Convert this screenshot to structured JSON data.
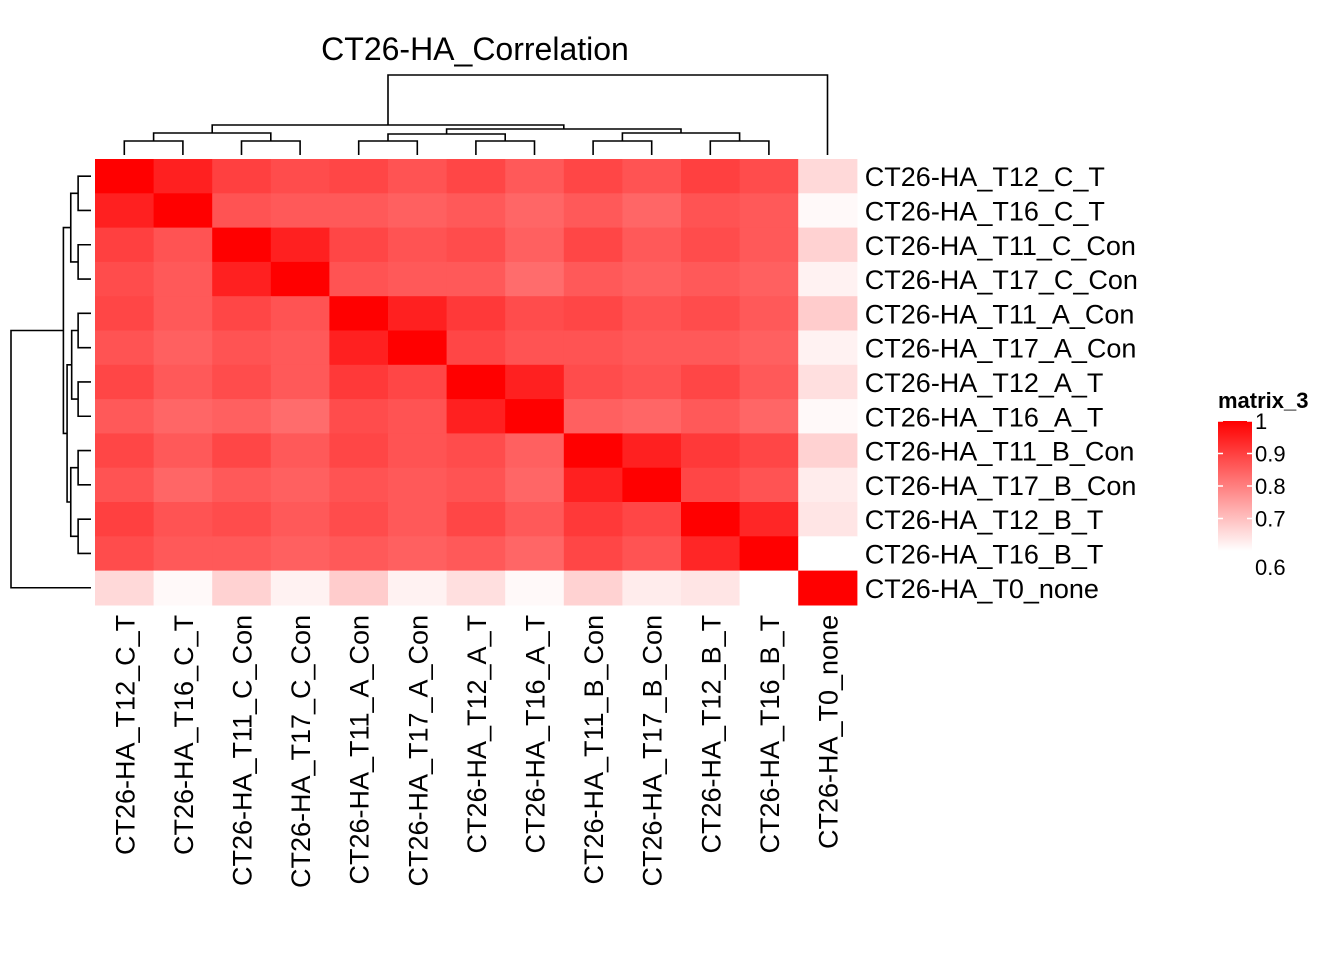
{
  "chart_data": {
    "type": "heatmap",
    "title": "CT26-HA_Correlation",
    "row_labels": [
      "CT26-HA_T12_C_T",
      "CT26-HA_T16_C_T",
      "CT26-HA_T11_C_Con",
      "CT26-HA_T17_C_Con",
      "CT26-HA_T11_A_Con",
      "CT26-HA_T17_A_Con",
      "CT26-HA_T12_A_T",
      "CT26-HA_T16_A_T",
      "CT26-HA_T11_B_Con",
      "CT26-HA_T17_B_Con",
      "CT26-HA_T12_B_T",
      "CT26-HA_T16_B_T",
      "CT26-HA_T0_none"
    ],
    "col_labels": [
      "CT26-HA_T12_C_T",
      "CT26-HA_T16_C_T",
      "CT26-HA_T11_C_Con",
      "CT26-HA_T17_C_Con",
      "CT26-HA_T11_A_Con",
      "CT26-HA_T17_A_Con",
      "CT26-HA_T12_A_T",
      "CT26-HA_T16_A_T",
      "CT26-HA_T11_B_Con",
      "CT26-HA_T17_B_Con",
      "CT26-HA_T12_B_T",
      "CT26-HA_T16_B_T",
      "CT26-HA_T0_none"
    ],
    "values": [
      [
        1.0,
        0.95,
        0.9,
        0.88,
        0.89,
        0.87,
        0.89,
        0.86,
        0.89,
        0.87,
        0.9,
        0.88,
        0.66
      ],
      [
        0.95,
        1.0,
        0.87,
        0.86,
        0.86,
        0.85,
        0.86,
        0.84,
        0.86,
        0.84,
        0.87,
        0.86,
        0.61
      ],
      [
        0.9,
        0.87,
        1.0,
        0.95,
        0.89,
        0.87,
        0.88,
        0.85,
        0.89,
        0.86,
        0.88,
        0.86,
        0.67
      ],
      [
        0.88,
        0.86,
        0.95,
        1.0,
        0.87,
        0.86,
        0.86,
        0.83,
        0.86,
        0.85,
        0.86,
        0.85,
        0.62
      ],
      [
        0.89,
        0.86,
        0.89,
        0.87,
        1.0,
        0.95,
        0.91,
        0.88,
        0.89,
        0.87,
        0.88,
        0.86,
        0.68
      ],
      [
        0.87,
        0.85,
        0.87,
        0.86,
        0.95,
        1.0,
        0.89,
        0.87,
        0.87,
        0.86,
        0.86,
        0.85,
        0.62
      ],
      [
        0.89,
        0.86,
        0.88,
        0.86,
        0.91,
        0.89,
        1.0,
        0.95,
        0.88,
        0.87,
        0.89,
        0.86,
        0.65
      ],
      [
        0.86,
        0.84,
        0.85,
        0.83,
        0.88,
        0.87,
        0.95,
        1.0,
        0.85,
        0.84,
        0.86,
        0.84,
        0.61
      ],
      [
        0.89,
        0.86,
        0.89,
        0.86,
        0.89,
        0.87,
        0.88,
        0.85,
        1.0,
        0.95,
        0.91,
        0.89,
        0.67
      ],
      [
        0.87,
        0.84,
        0.86,
        0.85,
        0.87,
        0.86,
        0.87,
        0.84,
        0.95,
        1.0,
        0.89,
        0.87,
        0.63
      ],
      [
        0.9,
        0.87,
        0.88,
        0.86,
        0.88,
        0.86,
        0.89,
        0.86,
        0.91,
        0.89,
        1.0,
        0.94,
        0.64
      ],
      [
        0.88,
        0.86,
        0.86,
        0.85,
        0.86,
        0.85,
        0.86,
        0.84,
        0.89,
        0.87,
        0.94,
        1.0,
        0.6
      ],
      [
        0.66,
        0.61,
        0.67,
        0.62,
        0.68,
        0.62,
        0.65,
        0.61,
        0.67,
        0.63,
        0.64,
        0.6,
        1.0
      ]
    ],
    "legend": {
      "title": "matrix_3",
      "ticks": [
        "1",
        "0.9",
        "0.8",
        "0.7",
        "0.6"
      ],
      "range": [
        0.6,
        1.0
      ],
      "low_color": "#FFFFFF",
      "high_color": "#FF0000"
    },
    "row_dendrogram": "left",
    "column_dendrogram": "top"
  }
}
